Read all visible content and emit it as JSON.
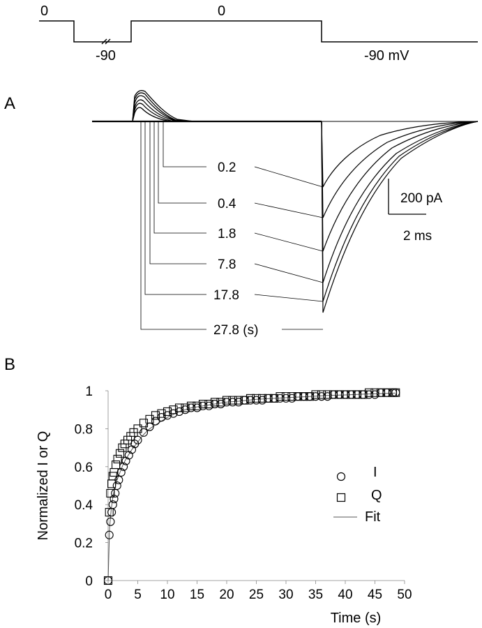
{
  "protocol": {
    "label_hold_left": "0",
    "label_step_down": "-90",
    "label_test_pulse": "0",
    "label_end": "-90 mV"
  },
  "panel_a": {
    "panel_label": "A",
    "scale_bar": {
      "current_label": "200 pA",
      "time_label": "2 ms"
    },
    "interval_labels": [
      "0.2",
      "0.4",
      "1.8",
      "7.8",
      "17.8",
      "27.8 (s)"
    ]
  },
  "panel_b": {
    "panel_label": "B",
    "legend": {
      "i_label": "I",
      "q_label": "Q",
      "fit_label": "Fit"
    }
  },
  "chart_data": {
    "type": "scatter",
    "xlabel": "Time (s)",
    "ylabel": "Normalized I or Q",
    "xlim": [
      0,
      50
    ],
    "ylim": [
      0,
      1
    ],
    "xticks": [
      "0",
      "5",
      "10",
      "15",
      "20",
      "25",
      "30",
      "35",
      "40",
      "45",
      "50"
    ],
    "yticks": [
      "0",
      "0.2",
      "0.4",
      "0.6",
      "0.8",
      "1"
    ],
    "legend_position": "right-middle",
    "series": [
      {
        "name": "I",
        "marker": "circle",
        "x": [
          0,
          0.2,
          0.4,
          0.6,
          0.8,
          1,
          1.2,
          1.5,
          1.8,
          2.2,
          2.6,
          3,
          3.5,
          4,
          4.5,
          5,
          6,
          7,
          8,
          9,
          10,
          11,
          12,
          13,
          14,
          15,
          16,
          17,
          18,
          19,
          20,
          21,
          22,
          23,
          24,
          25,
          26,
          27,
          28,
          29,
          30,
          31,
          32,
          33,
          34,
          35,
          36,
          37,
          38,
          39,
          40,
          41,
          42,
          43,
          44,
          45,
          46,
          47,
          48,
          48.5
        ],
        "y": [
          0,
          0.24,
          0.31,
          0.36,
          0.4,
          0.43,
          0.46,
          0.5,
          0.53,
          0.57,
          0.6,
          0.63,
          0.66,
          0.69,
          0.72,
          0.74,
          0.78,
          0.81,
          0.84,
          0.86,
          0.87,
          0.88,
          0.89,
          0.9,
          0.91,
          0.91,
          0.92,
          0.92,
          0.93,
          0.93,
          0.94,
          0.94,
          0.94,
          0.95,
          0.95,
          0.95,
          0.95,
          0.96,
          0.96,
          0.96,
          0.96,
          0.96,
          0.97,
          0.97,
          0.97,
          0.97,
          0.97,
          0.97,
          0.98,
          0.98,
          0.98,
          0.98,
          0.98,
          0.98,
          0.98,
          0.98,
          0.99,
          0.99,
          0.99,
          0.99
        ]
      },
      {
        "name": "Q",
        "marker": "square",
        "x": [
          0,
          0.2,
          0.4,
          0.6,
          0.8,
          1,
          1.3,
          1.6,
          2,
          2.4,
          2.8,
          3.3,
          3.8,
          4.3,
          5,
          6,
          7,
          8,
          9,
          10,
          11,
          12,
          13,
          14,
          15,
          16,
          17,
          18,
          19,
          20,
          21,
          22,
          23,
          24,
          25,
          26,
          27,
          28,
          29,
          30,
          31,
          32,
          33,
          34,
          35,
          36,
          37,
          38,
          39,
          40,
          41,
          42,
          43,
          44,
          45,
          46,
          47,
          48,
          48.5
        ],
        "y": [
          0,
          0.36,
          0.46,
          0.51,
          0.55,
          0.57,
          0.61,
          0.64,
          0.67,
          0.7,
          0.72,
          0.74,
          0.76,
          0.78,
          0.8,
          0.83,
          0.85,
          0.87,
          0.88,
          0.89,
          0.9,
          0.91,
          0.91,
          0.92,
          0.92,
          0.93,
          0.93,
          0.94,
          0.94,
          0.95,
          0.95,
          0.95,
          0.95,
          0.96,
          0.96,
          0.96,
          0.96,
          0.96,
          0.97,
          0.97,
          0.97,
          0.97,
          0.97,
          0.97,
          0.98,
          0.98,
          0.98,
          0.98,
          0.98,
          0.98,
          0.98,
          0.98,
          0.98,
          0.99,
          0.99,
          0.99,
          0.99,
          0.99,
          0.99
        ]
      },
      {
        "name": "Fit",
        "marker": "line",
        "x": [
          0,
          0.25,
          0.5,
          0.75,
          1,
          1.5,
          2,
          2.5,
          3,
          4,
          5,
          6,
          7,
          8,
          10,
          12,
          14,
          16,
          18,
          20,
          22,
          25,
          28,
          31,
          34,
          37,
          40,
          43,
          46,
          48.5
        ],
        "y": [
          0,
          0.28,
          0.37,
          0.43,
          0.47,
          0.53,
          0.57,
          0.61,
          0.64,
          0.69,
          0.73,
          0.77,
          0.8,
          0.82,
          0.86,
          0.89,
          0.91,
          0.92,
          0.93,
          0.94,
          0.945,
          0.955,
          0.96,
          0.965,
          0.97,
          0.975,
          0.978,
          0.982,
          0.985,
          0.988
        ]
      }
    ]
  }
}
